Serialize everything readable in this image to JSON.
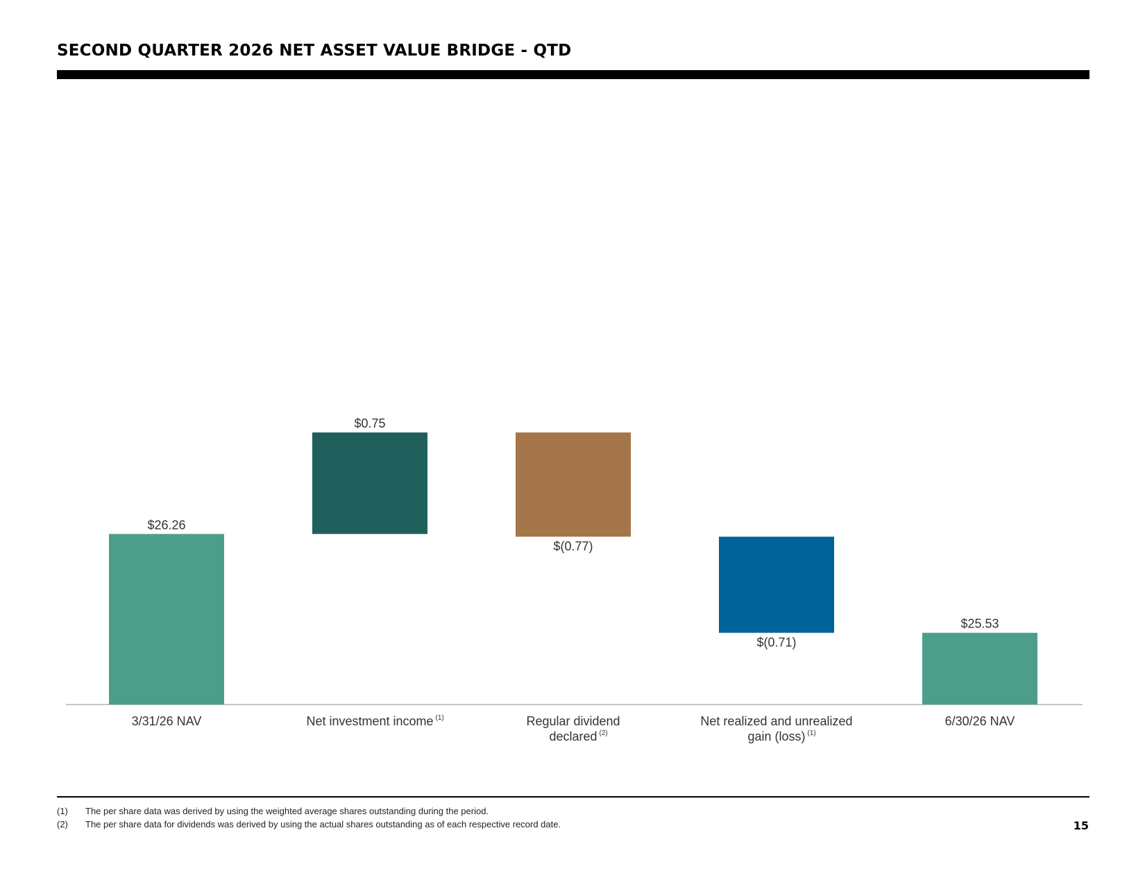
{
  "page": {
    "title": "SECOND QUARTER 2026 NET ASSET VALUE BRIDGE - QTD",
    "page_number": "15"
  },
  "footnotes": [
    {
      "num": "(1)",
      "text": "The per share data was derived by using the weighted average shares outstanding during the period."
    },
    {
      "num": "(2)",
      "text": "The per share data for dividends was derived by using the actual shares outstanding as of each respective record date."
    }
  ],
  "chart_data": {
    "type": "bar",
    "subtype": "waterfall",
    "title": "",
    "xlabel": "",
    "ylabel": "",
    "categories": [
      {
        "lines": [
          "3/31/26 NAV"
        ],
        "sup": ""
      },
      {
        "lines": [
          "Net investment income"
        ],
        "sup": "(1)"
      },
      {
        "lines": [
          "Regular dividend",
          "declared"
        ],
        "sup": "(2)"
      },
      {
        "lines": [
          "Net realized and unrealized",
          "gain (loss)"
        ],
        "sup": "(1)"
      },
      {
        "lines": [
          "6/30/26 NAV"
        ],
        "sup": ""
      }
    ],
    "values": [
      26.26,
      0.75,
      -0.77,
      -0.71,
      25.53
    ],
    "value_labels": [
      "$26.26",
      "$0.75",
      "$(0.77)",
      "$(0.71)",
      "$25.53"
    ],
    "bar_kind": [
      "total",
      "delta",
      "delta",
      "delta",
      "total"
    ],
    "colors": [
      "#4c9e8b",
      "#1e5f5c",
      "#a4764a",
      "#00639a",
      "#4c9e8b"
    ],
    "axis_color": "#b3b3b3",
    "grid": false,
    "legend": "none"
  }
}
